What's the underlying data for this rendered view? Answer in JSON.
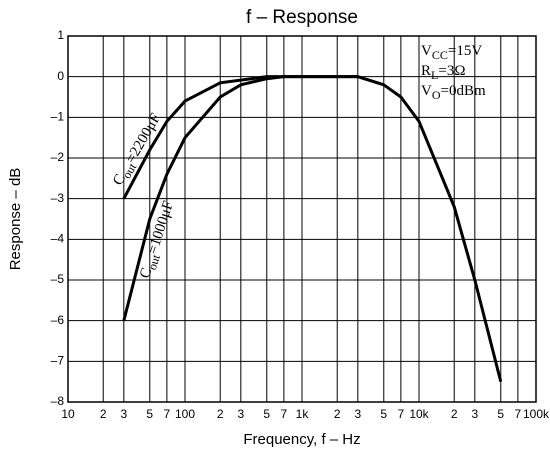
{
  "chart_data": {
    "type": "line",
    "title": "f – Response",
    "x_label": "Frequency,  f – Hz",
    "y_label": "Response – dB",
    "xscale": "log",
    "grid": true,
    "color": "#000000",
    "xlim": [
      10,
      100000
    ],
    "ylim": [
      -8,
      1
    ],
    "xticks": [
      10,
      {
        "value": 20,
        "label": "2"
      },
      {
        "value": 30,
        "label": "3"
      },
      {
        "value": 50,
        "label": "5"
      },
      {
        "value": 70,
        "label": "7"
      },
      100,
      {
        "value": 200,
        "label": "2"
      },
      {
        "value": 300,
        "label": "3"
      },
      {
        "value": 500,
        "label": "5"
      },
      {
        "value": 700,
        "label": "7"
      },
      {
        "value": 1000,
        "label": "1k"
      },
      {
        "value": 2000,
        "label": "2"
      },
      {
        "value": 3000,
        "label": "3"
      },
      {
        "value": 5000,
        "label": "5"
      },
      {
        "value": 7000,
        "label": "7"
      },
      {
        "value": 10000,
        "label": "10k"
      },
      {
        "value": 20000,
        "label": "2"
      },
      {
        "value": 30000,
        "label": "3"
      },
      {
        "value": 50000,
        "label": "5"
      },
      {
        "value": 70000,
        "label": "7"
      },
      {
        "value": 100000,
        "label": "100k"
      }
    ],
    "yticks": [
      1,
      0,
      {
        "value": -1,
        "label": "–1"
      },
      {
        "value": -2,
        "label": "–2"
      },
      {
        "value": -3,
        "label": "–3"
      },
      {
        "value": -4,
        "label": "–4"
      },
      {
        "value": -5,
        "label": "–5"
      },
      {
        "value": -6,
        "label": "–6"
      },
      {
        "value": -7,
        "label": "–7"
      },
      {
        "value": -8,
        "label": "–8"
      }
    ],
    "series": [
      {
        "name": [
          "C",
          "out",
          "=2200μF"
        ],
        "color": "#000000",
        "x": [
          30,
          50,
          70,
          100,
          200,
          500,
          1000,
          3000,
          5000,
          7000,
          10000,
          20000,
          30000,
          50000
        ],
        "values": [
          -3,
          -1.8,
          -1.1,
          -0.6,
          -0.15,
          0,
          0,
          0,
          -0.2,
          -0.5,
          -1.1,
          -3.2,
          -5,
          -7.5
        ]
      },
      {
        "name": [
          "C",
          "out",
          "=1000μF"
        ],
        "color": "#000000",
        "x": [
          30,
          50,
          70,
          100,
          200,
          300,
          500,
          700,
          1000,
          3000
        ],
        "values": [
          -6,
          -3.5,
          -2.4,
          -1.5,
          -0.5,
          -0.2,
          -0.05,
          0,
          0,
          0
        ]
      }
    ],
    "annotations": [
      [
        "V",
        "CC",
        "=15V"
      ],
      [
        "R",
        "L",
        "=3Ω"
      ],
      [
        "V",
        "O",
        "=0dBm"
      ]
    ]
  }
}
